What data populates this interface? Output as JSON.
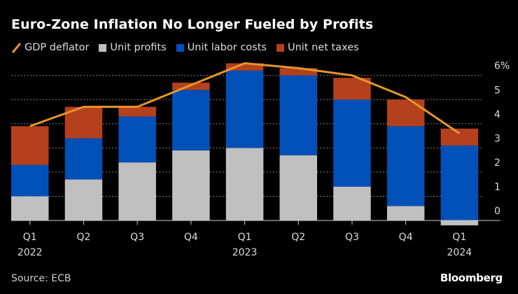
{
  "chart_data": {
    "type": "bar",
    "stacked": true,
    "title": "Euro-Zone Inflation No Longer Fueled by Profits",
    "categories": [
      "Q1 2022",
      "Q2 2022",
      "Q3 2022",
      "Q4 2022",
      "Q1 2023",
      "Q2 2023",
      "Q3 2023",
      "Q4 2023",
      "Q1 2024"
    ],
    "x_tick_labels": [
      [
        "Q1",
        "2022"
      ],
      [
        "Q2",
        ""
      ],
      [
        "Q3",
        ""
      ],
      [
        "Q4",
        ""
      ],
      [
        "Q1",
        "2023"
      ],
      [
        "Q2",
        ""
      ],
      [
        "Q3",
        ""
      ],
      [
        "Q4",
        ""
      ],
      [
        "Q1",
        "2024"
      ]
    ],
    "series": [
      {
        "name": "Unit profits",
        "type": "bar",
        "color": "#c0c0c0",
        "values": [
          1.0,
          1.7,
          2.4,
          2.9,
          3.0,
          2.7,
          1.4,
          0.6,
          -0.2
        ]
      },
      {
        "name": "Unit labor costs",
        "type": "bar",
        "color": "#0050b8",
        "values": [
          1.3,
          1.7,
          1.9,
          2.5,
          3.2,
          3.3,
          3.6,
          3.3,
          3.1
        ]
      },
      {
        "name": "Unit net taxes",
        "type": "bar",
        "color": "#b5401c",
        "values": [
          1.6,
          1.3,
          0.4,
          0.3,
          0.3,
          0.3,
          0.9,
          1.1,
          0.7
        ]
      },
      {
        "name": "GDP deflator",
        "type": "line",
        "color": "#e8952c",
        "values": [
          3.9,
          4.7,
          4.7,
          5.6,
          6.5,
          6.3,
          6.0,
          5.1,
          3.6
        ]
      }
    ],
    "ylim": [
      -0.3,
      6.6
    ],
    "y_ticks": [
      0,
      1,
      2,
      3,
      4,
      5,
      6
    ],
    "y_tick_labels": [
      "0",
      "1",
      "2",
      "3",
      "4",
      "5",
      "6%"
    ],
    "y_axis_position": "right",
    "grid": true,
    "legend": "top-left",
    "source": "Source: ECB",
    "brand": "Bloomberg"
  }
}
